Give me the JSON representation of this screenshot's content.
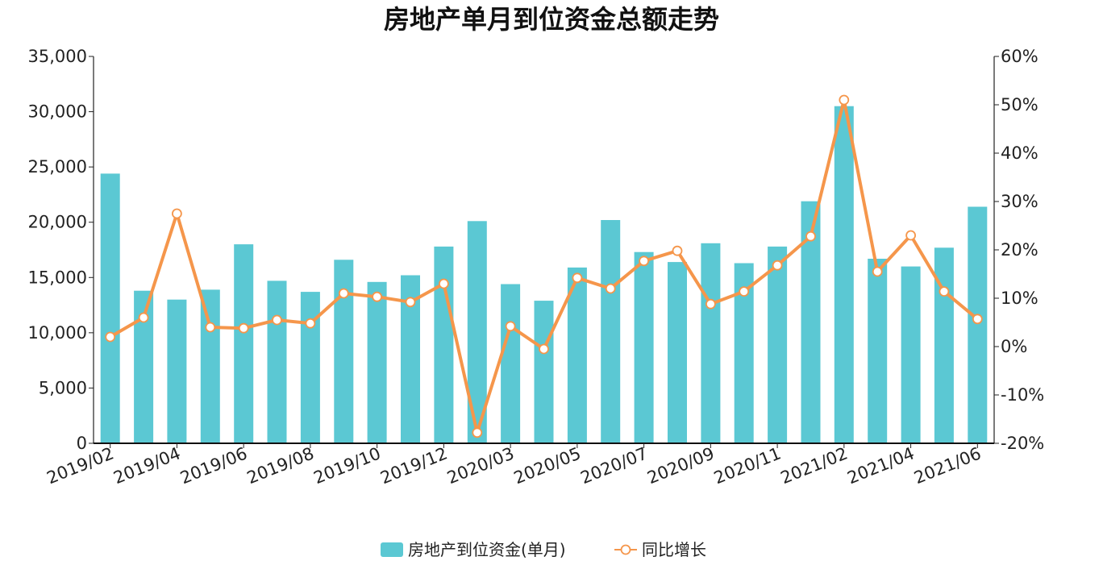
{
  "chart_data": {
    "type": "bar",
    "title": "房地产单月到位资金总额走势",
    "categories": [
      "2019/02",
      "2019/03",
      "2019/04",
      "2019/05",
      "2019/06",
      "2019/07",
      "2019/08",
      "2019/09",
      "2019/10",
      "2019/11",
      "2019/12",
      "2020/02",
      "2020/03",
      "2020/04",
      "2020/05",
      "2020/06",
      "2020/07",
      "2020/08",
      "2020/09",
      "2020/10",
      "2020/11",
      "2020/12",
      "2021/02",
      "2021/03",
      "2021/04",
      "2021/05",
      "2021/06"
    ],
    "x_tick_labels": [
      "2019/02",
      "2019/04",
      "2019/06",
      "2019/08",
      "2019/10",
      "2019/12",
      "2020/03",
      "2020/05",
      "2020/07",
      "2020/09",
      "2020/11",
      "2021/02",
      "2021/04",
      "2021/06"
    ],
    "series": [
      {
        "name": "房地产到位资金(单月)",
        "type": "bar",
        "axis": "left",
        "color": "#5bc8d3",
        "values": [
          24400,
          13800,
          13000,
          13900,
          18000,
          14700,
          13700,
          16600,
          14600,
          15200,
          17800,
          20100,
          14400,
          12900,
          15900,
          20200,
          17300,
          16400,
          18100,
          16300,
          17800,
          21900,
          30500,
          16700,
          16000,
          17700,
          21400
        ]
      },
      {
        "name": "同比增长",
        "type": "line",
        "axis": "right",
        "color": "#f5964b",
        "values": [
          2.0,
          6.0,
          27.5,
          4.0,
          3.8,
          5.5,
          4.8,
          11.0,
          10.3,
          9.2,
          13.0,
          -17.8,
          4.2,
          -0.5,
          14.2,
          12.0,
          17.7,
          19.8,
          8.8,
          11.4,
          16.8,
          22.8,
          51.0,
          15.5,
          23.0,
          11.4,
          5.7
        ]
      }
    ],
    "y_left": {
      "min": 0,
      "max": 35000,
      "ticks": [
        "0",
        "5,000",
        "10,000",
        "15,000",
        "20,000",
        "25,000",
        "30,000",
        "35,000"
      ]
    },
    "y_right": {
      "min": -20,
      "max": 60,
      "ticks": [
        "-20%",
        "-10%",
        "0%",
        "10%",
        "20%",
        "30%",
        "40%",
        "50%",
        "60%"
      ]
    },
    "legend": {
      "position": "bottom-center"
    },
    "grid": false
  }
}
